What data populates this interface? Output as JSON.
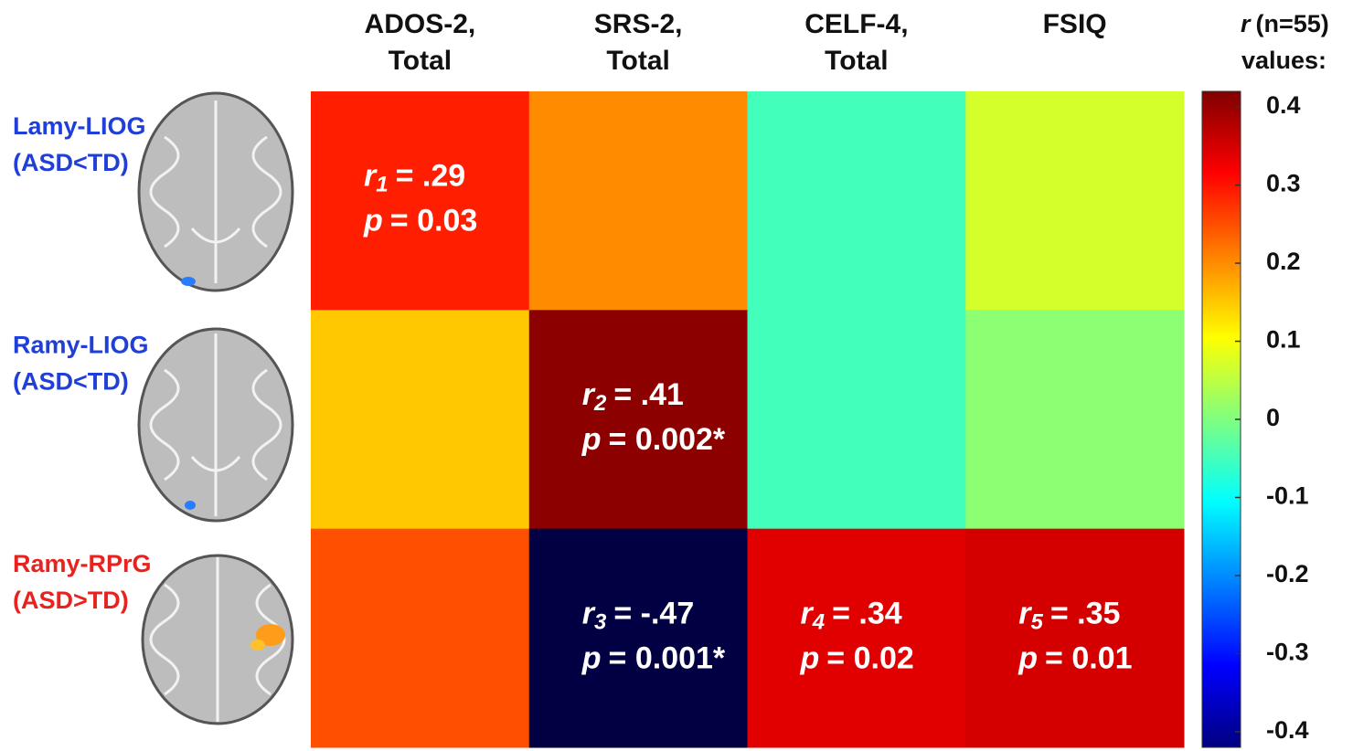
{
  "chart_data": {
    "type": "heatmap",
    "columns": [
      [
        "ADOS-2,",
        "Total"
      ],
      [
        "SRS-2,",
        "Total"
      ],
      [
        "CELF-4,",
        "Total"
      ],
      [
        "FSIQ"
      ]
    ],
    "rows": [
      {
        "name": "Lamy-LIOG",
        "group": "(ASD<TD)",
        "color": "#1f3fd8"
      },
      {
        "name": "Ramy-LIOG",
        "group": "(ASD<TD)",
        "color": "#1f3fd8"
      },
      {
        "name": "Ramy-RPrG",
        "group": "(ASD>TD)",
        "color": "#e8231f"
      }
    ],
    "values": [
      [
        0.29,
        0.2,
        -0.05,
        0.07
      ],
      [
        0.15,
        0.41,
        -0.05,
        0.01
      ],
      [
        0.25,
        -0.47,
        0.34,
        0.35
      ]
    ],
    "r_symbol": "r",
    "p_symbol": "p",
    "subscripts": [
      [
        "1",
        null,
        null,
        null
      ],
      [
        null,
        "2",
        null,
        null
      ],
      [
        null,
        "3",
        "4",
        "5"
      ]
    ],
    "value_labels": [
      [
        "= .29",
        null,
        null,
        null
      ],
      [
        null,
        "= .41",
        null,
        null
      ],
      [
        null,
        "= -.47",
        "= .34",
        "= .35"
      ]
    ],
    "p_labels": [
      [
        "= 0.03",
        null,
        null,
        null
      ],
      [
        null,
        "= 0.002*",
        null,
        null
      ],
      [
        null,
        "= 0.001*",
        "= 0.02",
        "= 0.01"
      ]
    ],
    "colormap": "jet",
    "clim": [
      -0.42,
      0.42
    ],
    "colorbar_title": {
      "symbol": "r",
      "text": "(n=55)",
      "line2": "values:"
    },
    "colorbar_ticks": [
      0.4,
      0.3,
      0.2,
      0.1,
      0,
      -0.1,
      -0.2,
      -0.3,
      -0.4
    ]
  }
}
